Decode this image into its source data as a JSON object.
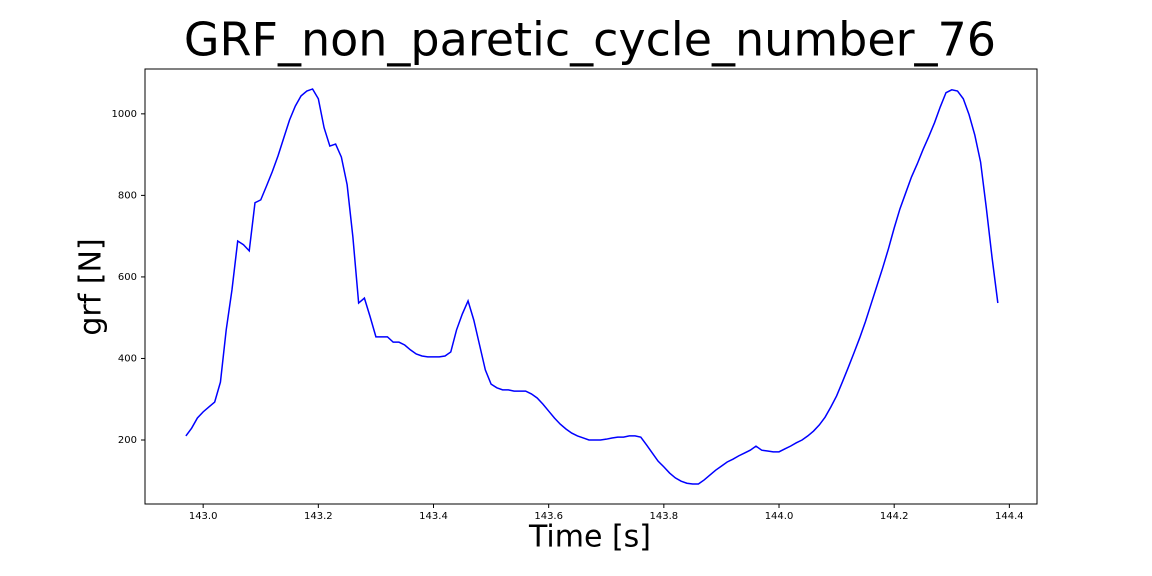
{
  "chart_data": {
    "type": "line",
    "title": "GRF_non_paretic_cycle_number_76",
    "xlabel": "Time [s]",
    "ylabel": "grf [N]",
    "x": [
      142.97,
      142.98,
      142.99,
      143.0,
      143.01,
      143.02,
      143.03,
      143.04,
      143.05,
      143.06,
      143.07,
      143.08,
      143.09,
      143.1,
      143.11,
      143.12,
      143.13,
      143.14,
      143.15,
      143.16,
      143.17,
      143.18,
      143.19,
      143.2,
      143.21,
      143.22,
      143.23,
      143.24,
      143.25,
      143.26,
      143.27,
      143.28,
      143.29,
      143.3,
      143.31,
      143.32,
      143.33,
      143.34,
      143.35,
      143.36,
      143.37,
      143.38,
      143.39,
      143.4,
      143.41,
      143.42,
      143.43,
      143.44,
      143.45,
      143.46,
      143.47,
      143.48,
      143.49,
      143.5,
      143.51,
      143.52,
      143.53,
      143.54,
      143.55,
      143.56,
      143.57,
      143.58,
      143.59,
      143.6,
      143.61,
      143.62,
      143.63,
      143.64,
      143.65,
      143.66,
      143.67,
      143.68,
      143.69,
      143.7,
      143.71,
      143.72,
      143.73,
      143.74,
      143.75,
      143.76,
      143.77,
      143.78,
      143.79,
      143.8,
      143.81,
      143.82,
      143.83,
      143.84,
      143.85,
      143.86,
      143.87,
      143.88,
      143.89,
      143.9,
      143.91,
      143.92,
      143.93,
      143.94,
      143.95,
      143.96,
      143.97,
      143.98,
      143.99,
      144.0,
      144.01,
      144.02,
      144.03,
      144.04,
      144.05,
      144.06,
      144.07,
      144.08,
      144.09,
      144.1,
      144.11,
      144.12,
      144.13,
      144.14,
      144.15,
      144.16,
      144.17,
      144.18,
      144.19,
      144.2,
      144.21,
      144.22,
      144.23,
      144.24,
      144.25,
      144.26,
      144.27,
      144.28,
      144.29,
      144.3,
      144.31,
      144.32,
      144.33,
      144.34,
      144.35,
      144.36,
      144.37,
      144.38
    ],
    "series": [
      {
        "color": "#0000ff",
        "values": [
          210,
          229,
          254,
          269,
          281,
          293,
          342,
          470,
          568,
          688,
          679,
          664,
          782,
          789,
          823,
          858,
          897,
          941,
          985,
          1019,
          1044,
          1056,
          1061,
          1037,
          966,
          921,
          926,
          894,
          826,
          698,
          536,
          548,
          502,
          453,
          453,
          453,
          440,
          440,
          433,
          421,
          411,
          406,
          404,
          404,
          404,
          406,
          416,
          470,
          509,
          541,
          494,
          433,
          372,
          337,
          328,
          323,
          323,
          320,
          320,
          320,
          313,
          303,
          288,
          271,
          254,
          239,
          227,
          217,
          210,
          205,
          200,
          200,
          200,
          202,
          205,
          207,
          207,
          210,
          210,
          207,
          188,
          168,
          148,
          134,
          119,
          107,
          99,
          94,
          92,
          92,
          102,
          114,
          126,
          136,
          146,
          153,
          161,
          168,
          175,
          185,
          175,
          173,
          171,
          171,
          178,
          185,
          193,
          200,
          210,
          222,
          237,
          256,
          281,
          308,
          342,
          377,
          413,
          450,
          490,
          534,
          578,
          622,
          669,
          720,
          767,
          806,
          845,
          877,
          912,
          944,
          978,
          1017,
          1052,
          1059,
          1056,
          1037,
          998,
          948,
          882,
          769,
          647,
          536
        ]
      }
    ],
    "xlim": [
      142.899,
      144.448
    ],
    "ylim": [
      43,
      1110
    ],
    "xticks": [
      {
        "value": 143,
        "label": "143.0"
      },
      143.2,
      143.4,
      143.6,
      143.8,
      {
        "value": 144,
        "label": "144.0"
      },
      144.2,
      144.4
    ],
    "yticks": [
      200,
      400,
      600,
      800,
      1000
    ]
  }
}
